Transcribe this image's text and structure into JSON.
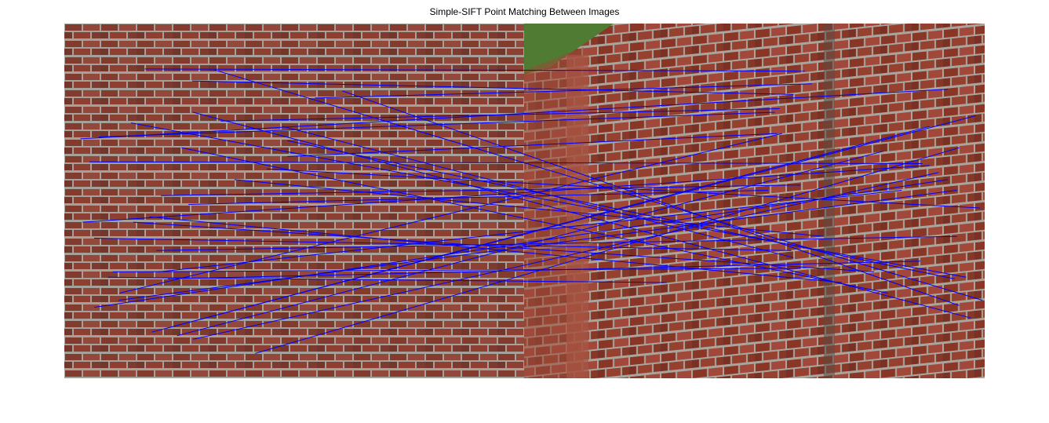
{
  "figure": {
    "title": "Simple-SIFT Point Matching Between Images"
  },
  "images": [
    {
      "name": "left-image",
      "subject": "brick wall, frontal view"
    },
    {
      "name": "right-image",
      "subject": "brick wall, perspective view with pillar"
    }
  ],
  "match_line_color": "#0000ff",
  "matches": [
    [
      [
        0.175,
        0.128
      ],
      [
        0.61,
        0.134
      ]
    ],
    [
      [
        0.075,
        0.32
      ],
      [
        0.545,
        0.25
      ]
    ],
    [
      [
        0.278,
        0.162
      ],
      [
        0.585,
        0.2
      ]
    ],
    [
      [
        0.34,
        0.275
      ],
      [
        0.555,
        0.24
      ]
    ],
    [
      [
        0.185,
        0.545
      ],
      [
        0.69,
        0.73
      ]
    ],
    [
      [
        0.065,
        0.605
      ],
      [
        0.58,
        0.64
      ]
    ],
    [
      [
        0.118,
        0.78
      ],
      [
        0.94,
        0.47
      ]
    ],
    [
      [
        0.205,
        0.7
      ],
      [
        0.82,
        0.47
      ]
    ],
    [
      [
        0.21,
        0.485
      ],
      [
        0.6,
        0.455
      ]
    ],
    [
      [
        0.095,
        0.715
      ],
      [
        0.31,
        0.73
      ]
    ],
    [
      [
        0.22,
        0.86
      ],
      [
        0.88,
        0.29
      ]
    ],
    [
      [
        0.545,
        0.21
      ],
      [
        0.625,
        0.17
      ]
    ],
    [
      [
        0.145,
        0.28
      ],
      [
        0.96,
        0.715
      ]
    ],
    [
      [
        0.255,
        0.35
      ],
      [
        0.79,
        0.76
      ]
    ],
    [
      [
        0.28,
        0.25
      ],
      [
        0.97,
        0.83
      ]
    ],
    [
      [
        0.485,
        0.375
      ],
      [
        0.55,
        0.31
      ]
    ],
    [
      [
        0.37,
        0.44
      ],
      [
        0.65,
        0.6
      ]
    ],
    [
      [
        0.325,
        0.13
      ],
      [
        0.995,
        0.78
      ]
    ],
    [
      [
        0.035,
        0.325
      ],
      [
        0.92,
        0.185
      ]
    ],
    [
      [
        0.19,
        0.87
      ],
      [
        0.98,
        0.26
      ]
    ],
    [
      [
        0.605,
        0.19
      ],
      [
        0.945,
        0.795
      ]
    ],
    [
      [
        0.475,
        0.29
      ],
      [
        0.585,
        0.66
      ]
    ],
    [
      [
        0.27,
        0.51
      ],
      [
        0.53,
        0.47
      ]
    ],
    [
      [
        0.105,
        0.7
      ],
      [
        0.6,
        0.69
      ]
    ],
    [
      [
        0.055,
        0.39
      ],
      [
        0.865,
        0.395
      ]
    ],
    [
      [
        0.485,
        0.33
      ],
      [
        0.935,
        0.72
      ]
    ],
    [
      [
        0.065,
        0.8
      ],
      [
        0.92,
        0.44
      ]
    ],
    [
      [
        0.415,
        0.93
      ],
      [
        0.945,
        0.35
      ]
    ],
    [
      [
        0.225,
        0.72
      ],
      [
        0.86,
        0.67
      ]
    ],
    [
      [
        0.12,
        0.76
      ],
      [
        0.56,
        0.31
      ]
    ],
    [
      [
        0.2,
        0.64
      ],
      [
        0.94,
        0.6
      ]
    ],
    [
      [
        0.44,
        0.41
      ],
      [
        0.99,
        0.52
      ]
    ],
    [
      [
        0.28,
        0.89
      ],
      [
        0.9,
        0.42
      ]
    ],
    [
      [
        0.15,
        0.56
      ],
      [
        0.76,
        0.7
      ]
    ],
    [
      [
        0.245,
        0.88
      ],
      [
        0.78,
        0.36
      ]
    ],
    [
      [
        0.04,
        0.56
      ],
      [
        0.88,
        0.4
      ]
    ]
  ]
}
